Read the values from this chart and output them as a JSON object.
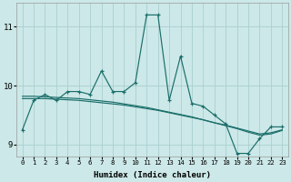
{
  "xlabel": "Humidex (Indice chaleur)",
  "bg_color": "#cce8e8",
  "grid_color": "#aacfcf",
  "line_color": "#1a6e6a",
  "xlim": [
    -0.5,
    23.5
  ],
  "ylim": [
    8.8,
    11.4
  ],
  "x": [
    0,
    1,
    2,
    3,
    4,
    5,
    6,
    7,
    8,
    9,
    10,
    11,
    12,
    13,
    14,
    15,
    16,
    17,
    18,
    19,
    20,
    21,
    22,
    23
  ],
  "y_main": [
    9.25,
    9.75,
    9.85,
    9.75,
    9.9,
    9.9,
    9.85,
    10.25,
    9.9,
    9.9,
    10.05,
    11.2,
    11.2,
    9.75,
    10.5,
    9.7,
    9.65,
    9.5,
    9.35,
    8.85,
    8.85,
    9.1,
    9.3,
    9.3
  ],
  "y_smooth1": [
    9.78,
    9.78,
    9.78,
    9.77,
    9.76,
    9.75,
    9.73,
    9.71,
    9.69,
    9.67,
    9.64,
    9.61,
    9.58,
    9.54,
    9.5,
    9.46,
    9.42,
    9.37,
    9.33,
    9.28,
    9.23,
    9.18,
    9.2,
    9.25
  ],
  "y_smooth2": [
    9.82,
    9.82,
    9.81,
    9.8,
    9.79,
    9.78,
    9.76,
    9.74,
    9.72,
    9.69,
    9.66,
    9.63,
    9.59,
    9.55,
    9.51,
    9.47,
    9.42,
    9.37,
    9.32,
    9.27,
    9.21,
    9.16,
    9.18,
    9.24
  ],
  "yticks": [
    9,
    10,
    11
  ],
  "xticks": [
    0,
    1,
    2,
    3,
    4,
    5,
    6,
    7,
    8,
    9,
    10,
    11,
    12,
    13,
    14,
    15,
    16,
    17,
    18,
    19,
    20,
    21,
    22,
    23
  ],
  "xlabel_fontsize": 6.5,
  "ylabel_fontsize": 7,
  "xtick_fontsize": 5.2,
  "ytick_fontsize": 6.5
}
